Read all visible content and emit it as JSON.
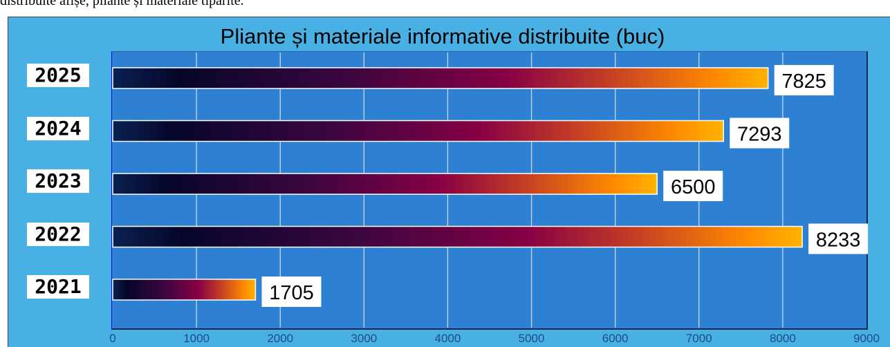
{
  "page_top_text": "distribuite afișe, pliante și materiale tipărite.",
  "chart_data": {
    "type": "bar",
    "orientation": "horizontal",
    "title": "Pliante și materiale informative distribuite (buc)",
    "categories": [
      "2025",
      "2024",
      "2023",
      "2022",
      "2021"
    ],
    "values": [
      7825,
      7293,
      6500,
      8233,
      1705
    ],
    "xlim": [
      0,
      9000
    ],
    "x_ticks": [
      "0",
      "1000",
      "2000",
      "3000",
      "4000",
      "5000",
      "6000",
      "7000",
      "8000",
      "9000"
    ],
    "grid": true,
    "data_labels": true,
    "bar_gradient": [
      "#0b2150",
      "#06062a",
      "#3a0640",
      "#860045",
      "#c23b26",
      "#ff8a00",
      "#ffb300"
    ],
    "plot_background": "#2d80d2",
    "frame_background": "#49b0e3"
  }
}
